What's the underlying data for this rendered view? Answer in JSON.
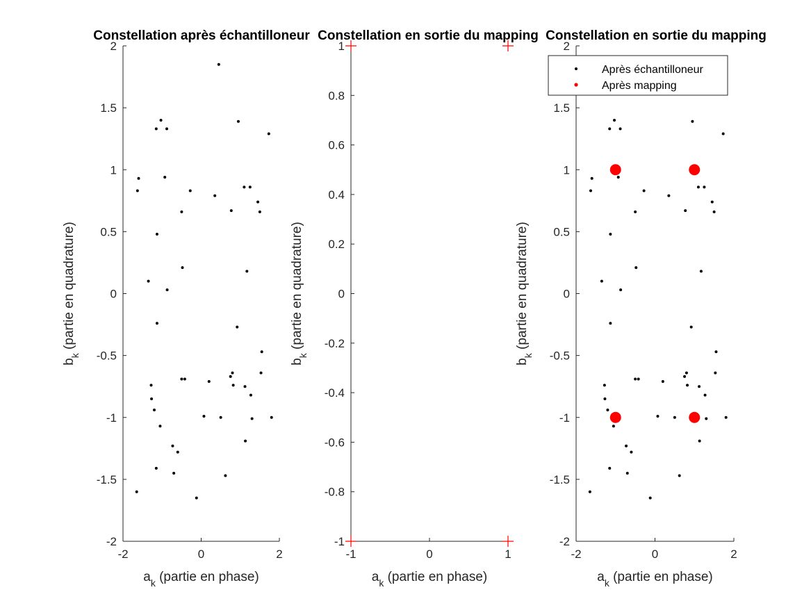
{
  "chart_data": [
    {
      "type": "scatter",
      "title": "Constellation après échantilloneur",
      "xlabel": {
        "main": "a",
        "sub": "k",
        "rest": " (partie en phase)"
      },
      "ylabel": {
        "main": "b",
        "sub": "k",
        "rest": " (partie en quadrature)"
      },
      "xlim": [
        -2,
        2
      ],
      "ylim": [
        -2,
        2
      ],
      "xticks": [
        -2,
        0,
        2
      ],
      "xtick_labels": [
        "-2",
        "0",
        "2"
      ],
      "yticks": [
        -2,
        -1.5,
        -1,
        -0.5,
        0,
        0.5,
        1,
        1.5,
        2
      ],
      "ytick_labels": [
        "-2",
        "-1.5",
        "-1",
        "-0.5",
        "0",
        "0.5",
        "1",
        "1.5",
        "2"
      ],
      "grid": false,
      "series": [
        {
          "marker": "dot",
          "color": "#000000",
          "x": [
            0.45,
            -1.15,
            -1.03,
            -0.88,
            0.95,
            1.73,
            -1.6,
            -1.63,
            -0.93,
            -0.28,
            0.35,
            1.1,
            1.25,
            0.77,
            1.45,
            1.5,
            -0.5,
            -1.13,
            -0.48,
            1.17,
            -1.35,
            -0.87,
            -1.13,
            0.92,
            1.55,
            0.8,
            0.75,
            1.53,
            -0.5,
            -0.42,
            0.2,
            0.82,
            1.12,
            1.27,
            -1.28,
            -1.27,
            -1.2,
            0.07,
            0.5,
            1.3,
            1.8,
            -1.05,
            1.13,
            -0.73,
            -0.6,
            -1.15,
            -0.7,
            0.62,
            -1.65,
            -0.12
          ],
          "y": [
            1.85,
            1.33,
            1.4,
            1.33,
            1.39,
            1.29,
            0.93,
            0.83,
            0.94,
            0.83,
            0.79,
            0.86,
            0.86,
            0.67,
            0.74,
            0.66,
            0.66,
            0.48,
            0.21,
            0.18,
            0.1,
            0.03,
            -0.24,
            -0.27,
            -0.47,
            -0.64,
            -0.67,
            -0.64,
            -0.69,
            -0.69,
            -0.71,
            -0.74,
            -0.75,
            -0.82,
            -0.74,
            -0.85,
            -0.94,
            -0.99,
            -1.0,
            -1.01,
            -1.0,
            -1.07,
            -1.19,
            -1.23,
            -1.28,
            -1.41,
            -1.45,
            -1.47,
            -1.6,
            -1.65
          ]
        }
      ]
    },
    {
      "type": "scatter",
      "title": "Constellation en sortie du mapping",
      "xlabel": {
        "main": "a",
        "sub": "k",
        "rest": " (partie en phase)"
      },
      "ylabel": {
        "main": "b",
        "sub": "k",
        "rest": " (partie en quadrature)"
      },
      "xlim": [
        -1,
        1
      ],
      "ylim": [
        -1,
        1
      ],
      "xticks": [
        -1,
        0,
        1
      ],
      "xtick_labels": [
        "-1",
        "0",
        "1"
      ],
      "yticks": [
        -1,
        -0.8,
        -0.6,
        -0.4,
        -0.2,
        0,
        0.2,
        0.4,
        0.6,
        0.8,
        1
      ],
      "ytick_labels": [
        "-1",
        "-0.8",
        "-0.6",
        "-0.4",
        "-0.2",
        "0",
        "0.2",
        "0.4",
        "0.6",
        "0.8",
        "1"
      ],
      "grid": false,
      "series": [
        {
          "marker": "plus",
          "color": "#ff0000",
          "x": [
            -1,
            1,
            -1,
            1
          ],
          "y": [
            1,
            1,
            -1,
            -1
          ]
        }
      ]
    },
    {
      "type": "scatter",
      "title": "Constellation en sortie du mapping",
      "xlabel": {
        "main": "a",
        "sub": "k",
        "rest": " (partie en phase)"
      },
      "ylabel": {
        "main": "b",
        "sub": "k",
        "rest": " (partie en quadrature)"
      },
      "xlim": [
        -2,
        2
      ],
      "ylim": [
        -2,
        2
      ],
      "xticks": [
        -2,
        0,
        2
      ],
      "xtick_labels": [
        "-2",
        "0",
        "2"
      ],
      "yticks": [
        -2,
        -1.5,
        -1,
        -0.5,
        0,
        0.5,
        1,
        1.5,
        2
      ],
      "ytick_labels": [
        "-2",
        "-1.5",
        "-1",
        "-0.5",
        "0",
        "0.5",
        "1",
        "1.5",
        "2"
      ],
      "grid": false,
      "legend": {
        "placement": "top-right",
        "entries": [
          "Après échantilloneur",
          "Après mapping"
        ]
      },
      "series": [
        {
          "name": "Après échantilloneur",
          "marker": "dot",
          "color": "#000000",
          "x": [
            0.45,
            -1.15,
            -1.03,
            -0.88,
            0.95,
            1.73,
            -1.6,
            -1.63,
            -0.93,
            -0.28,
            0.35,
            1.1,
            1.25,
            0.77,
            1.45,
            1.5,
            -0.5,
            -1.13,
            -0.48,
            1.17,
            -1.35,
            -0.87,
            -1.13,
            0.92,
            1.55,
            0.8,
            0.75,
            1.53,
            -0.5,
            -0.42,
            0.2,
            0.82,
            1.12,
            1.27,
            -1.28,
            -1.27,
            -1.2,
            0.07,
            0.5,
            1.3,
            1.8,
            -1.05,
            1.13,
            -0.73,
            -0.6,
            -1.15,
            -0.7,
            0.62,
            -1.65,
            -0.12
          ],
          "y": [
            1.85,
            1.33,
            1.4,
            1.33,
            1.39,
            1.29,
            0.93,
            0.83,
            0.94,
            0.83,
            0.79,
            0.86,
            0.86,
            0.67,
            0.74,
            0.66,
            0.66,
            0.48,
            0.21,
            0.18,
            0.1,
            0.03,
            -0.24,
            -0.27,
            -0.47,
            -0.64,
            -0.67,
            -0.64,
            -0.69,
            -0.69,
            -0.71,
            -0.74,
            -0.75,
            -0.82,
            -0.74,
            -0.85,
            -0.94,
            -0.99,
            -1.0,
            -1.01,
            -1.0,
            -1.07,
            -1.19,
            -1.23,
            -1.28,
            -1.41,
            -1.45,
            -1.47,
            -1.6,
            -1.65
          ]
        },
        {
          "name": "Après mapping",
          "marker": "bigdot",
          "color": "#ff0000",
          "x": [
            -1,
            1,
            -1,
            1
          ],
          "y": [
            1,
            1,
            -1,
            -1
          ]
        }
      ]
    }
  ]
}
